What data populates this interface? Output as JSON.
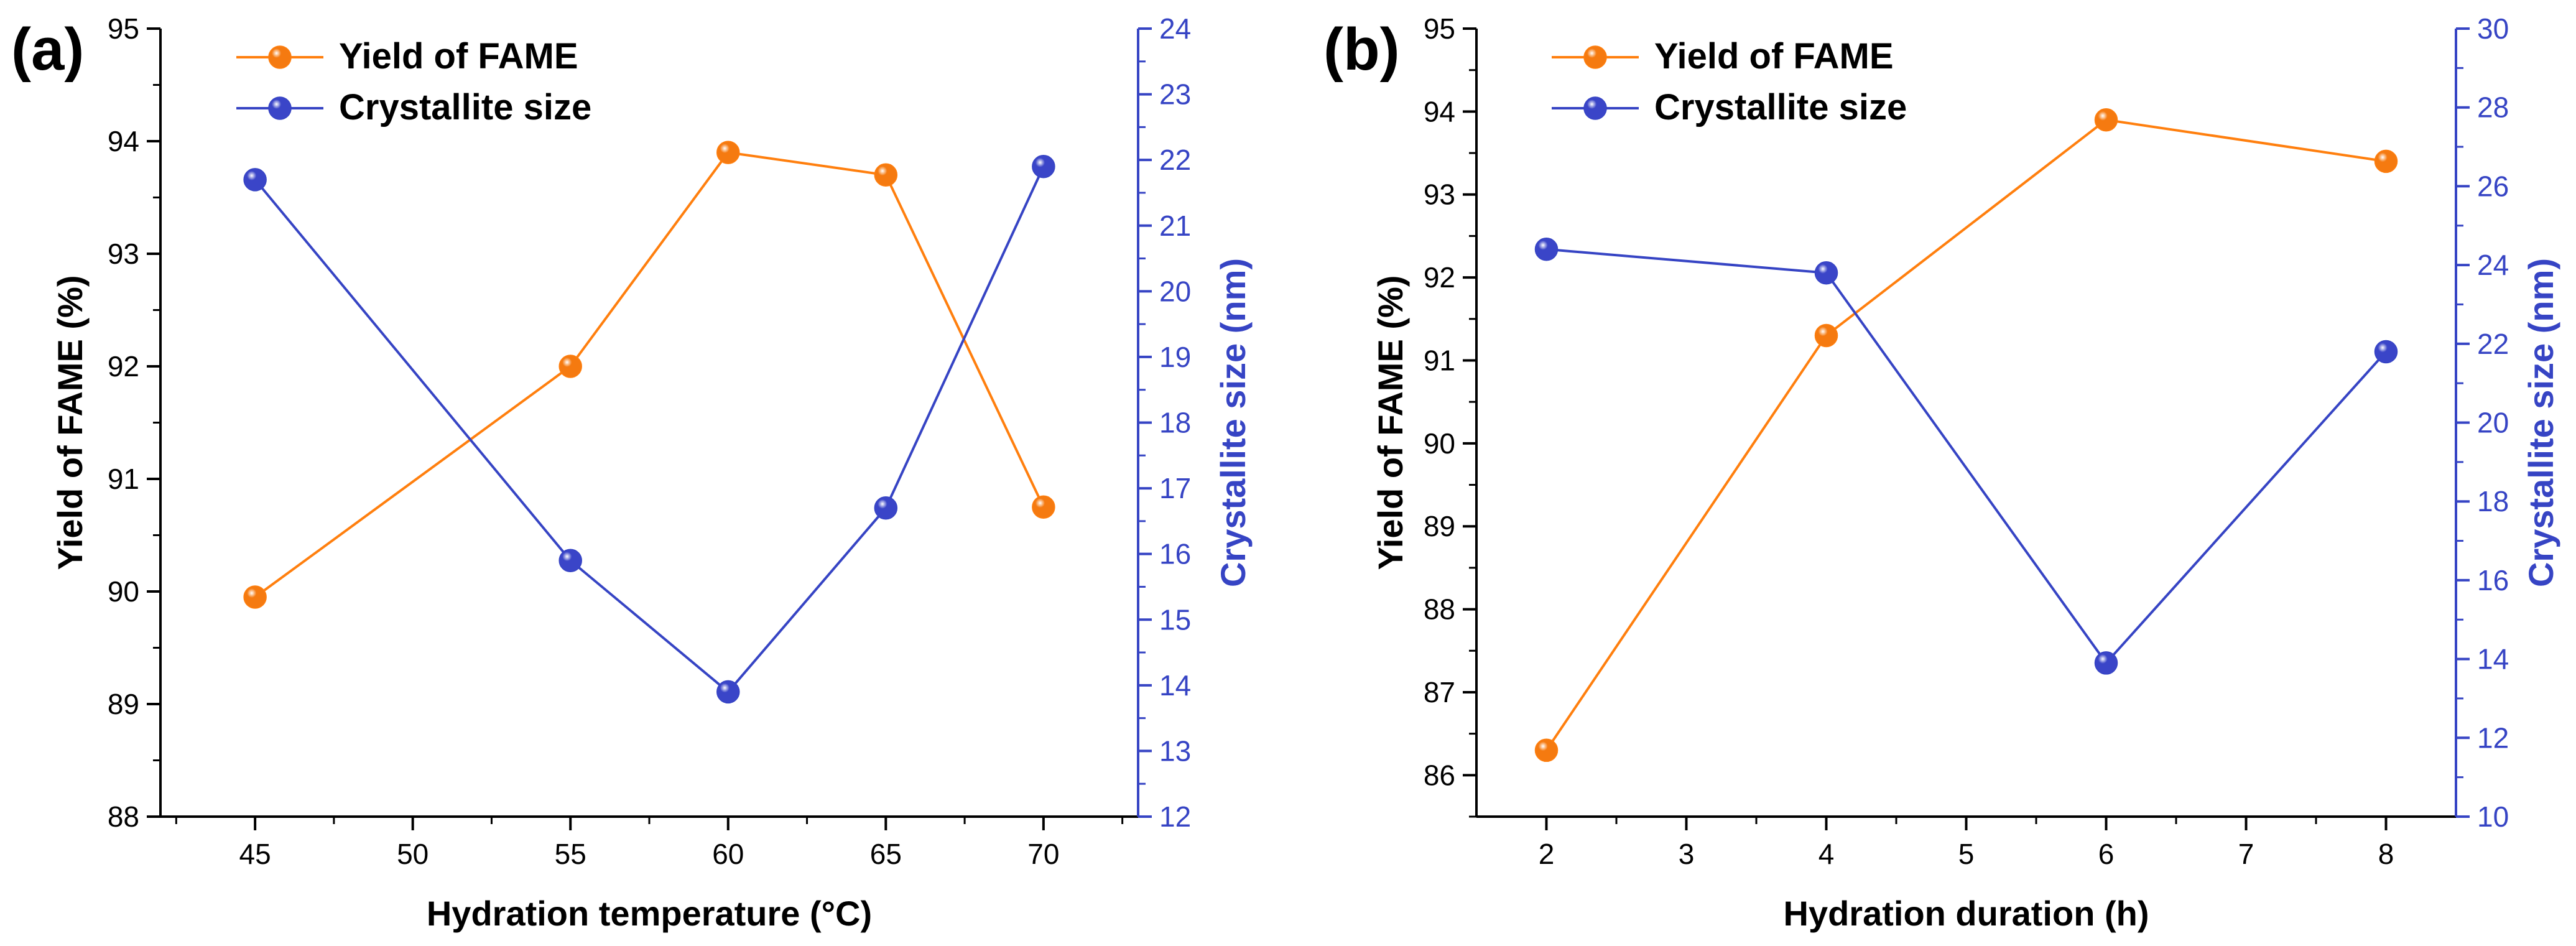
{
  "colors": {
    "yield": "#FF7F0E",
    "yield_marker": "#F57A10",
    "crystallite": "#3644C4",
    "crystallite_marker": "#3A45C8",
    "axis": "#000000"
  },
  "chart_data": [
    {
      "panel_label": "(a)",
      "type": "line",
      "xlabel": "Hydration temperature (°C)",
      "ylabel": "Yield of FAME (%)",
      "y2label": "Crystallite size (nm)",
      "xlim": [
        42,
        73
      ],
      "xticks": [
        45,
        50,
        55,
        60,
        65,
        70
      ],
      "ylim": [
        88,
        95
      ],
      "yticks": [
        88,
        89,
        90,
        91,
        92,
        93,
        94,
        95
      ],
      "y2lim": [
        12,
        24
      ],
      "y2ticks": [
        12,
        13,
        14,
        15,
        16,
        17,
        18,
        19,
        20,
        21,
        22,
        23,
        24
      ],
      "series": [
        {
          "name": "Yield of FAME",
          "axis": "left",
          "x": [
            45,
            55,
            60,
            65,
            70
          ],
          "values": [
            89.95,
            92.0,
            93.9,
            93.7,
            90.75
          ]
        },
        {
          "name": "Crystallite size",
          "axis": "right",
          "x": [
            45,
            55,
            60,
            65,
            70
          ],
          "values": [
            21.7,
            15.9,
            13.9,
            16.7,
            21.9
          ]
        }
      ],
      "legend": [
        "Yield of FAME",
        "Crystallite size"
      ],
      "legend_position": "top-left"
    },
    {
      "panel_label": "(b)",
      "type": "line",
      "xlabel": "Hydration duration (h)",
      "ylabel": "Yield of FAME (%)",
      "y2label": "Crystallite size (nm)",
      "xlim": [
        1.5,
        8.5
      ],
      "xticks": [
        2,
        3,
        4,
        5,
        6,
        7,
        8
      ],
      "ylim": [
        85.5,
        95
      ],
      "yticks": [
        86,
        87,
        88,
        89,
        90,
        91,
        92,
        93,
        94,
        95
      ],
      "y2lim": [
        10,
        30
      ],
      "y2ticks": [
        10,
        12,
        14,
        16,
        18,
        20,
        22,
        24,
        26,
        28,
        30
      ],
      "series": [
        {
          "name": "Yield of FAME",
          "axis": "left",
          "x": [
            2,
            4,
            6,
            8
          ],
          "values": [
            86.3,
            91.3,
            93.9,
            93.4
          ]
        },
        {
          "name": "Crystallite size",
          "axis": "right",
          "x": [
            2,
            4,
            6,
            8
          ],
          "values": [
            24.4,
            23.8,
            13.9,
            21.8
          ]
        }
      ],
      "legend": [
        "Yield of FAME",
        "Crystallite size"
      ],
      "legend_position": "top-left"
    }
  ]
}
